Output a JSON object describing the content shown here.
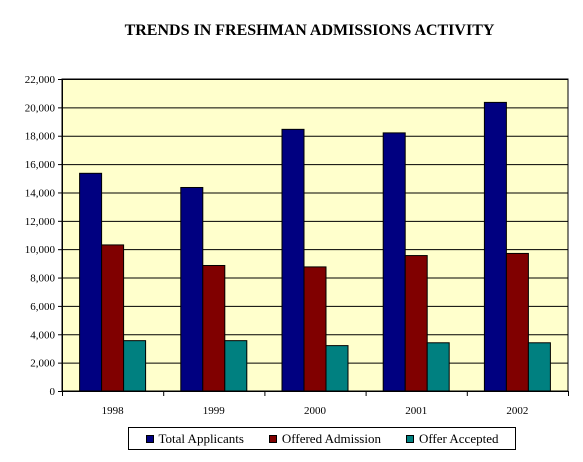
{
  "chart_data": {
    "type": "bar",
    "title": "TRENDS IN FRESHMAN ADMISSIONS ACTIVITY",
    "xlabel": "",
    "ylabel": "",
    "categories": [
      "1998",
      "1999",
      "2000",
      "2001",
      "2002"
    ],
    "series": [
      {
        "name": "Total Applicants",
        "color": "#000080",
        "values": [
          15350,
          14350,
          18450,
          18200,
          20350
        ]
      },
      {
        "name": "Offered Admission",
        "color": "#800000",
        "values": [
          10300,
          8850,
          8750,
          9550,
          9700
        ]
      },
      {
        "name": "Offer Accepted",
        "color": "#008080",
        "values": [
          3550,
          3550,
          3200,
          3400,
          3400
        ]
      }
    ],
    "ylim": [
      0,
      22000
    ],
    "yticks": [
      0,
      2000,
      4000,
      6000,
      8000,
      10000,
      12000,
      14000,
      16000,
      18000,
      20000,
      22000
    ],
    "ytick_labels": [
      "0",
      "2,000",
      "4,000",
      "6,000",
      "8,000",
      "10,000",
      "12,000",
      "14,000",
      "16,000",
      "18,000",
      "20,000",
      "22,000"
    ],
    "plot_background": "#ffffcc",
    "grid": true,
    "legend_position": "bottom"
  }
}
